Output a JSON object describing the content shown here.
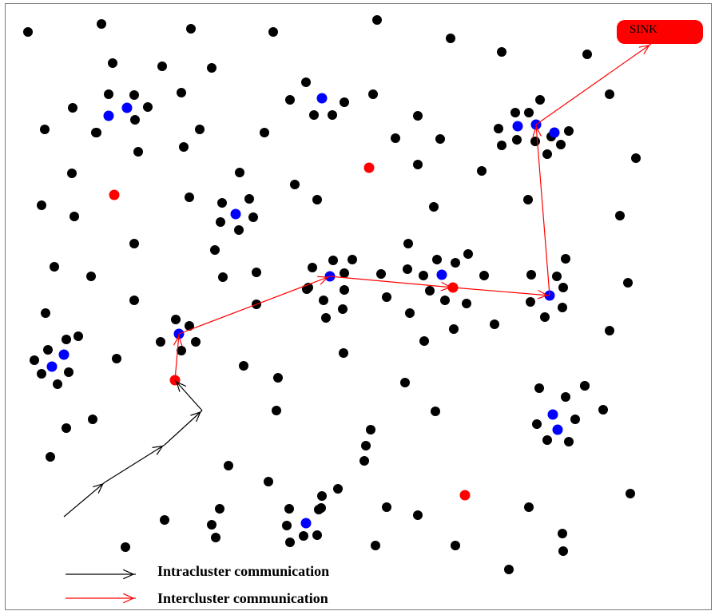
{
  "sink": {
    "label": "SINK"
  },
  "legend": {
    "intra_label": "Intracluster communication",
    "inter_label": "Intercluster communication"
  },
  "colors": {
    "node": "#000000",
    "cluster_head": "#0000ff",
    "relay": "#ff0000",
    "intra_arrow": "#000000",
    "inter_arrow": "#ff0000",
    "sink": "#ff0000"
  }
}
